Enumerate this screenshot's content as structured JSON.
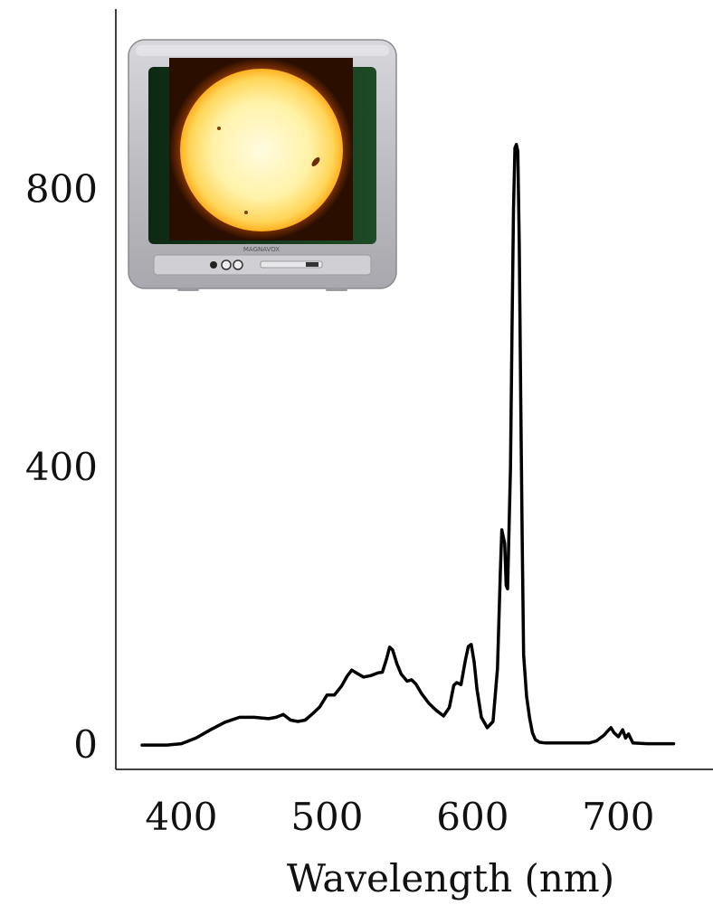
{
  "chart_data": {
    "type": "line",
    "title": "",
    "xlabel": "Wavelength (nm)",
    "ylabel": "",
    "xlim": [
      355,
      765
    ],
    "ylim": [
      -35,
      1060
    ],
    "grid": false,
    "legend": "none",
    "x_ticks": [
      {
        "value": 400,
        "label": "400"
      },
      {
        "value": 500,
        "label": "500"
      },
      {
        "value": 600,
        "label": "600"
      },
      {
        "value": 700,
        "label": "700"
      }
    ],
    "y_ticks": [
      {
        "value": 0,
        "label": "0"
      },
      {
        "value": 400,
        "label": "400"
      },
      {
        "value": 800,
        "label": "800"
      }
    ],
    "series": [
      {
        "color": "#000000",
        "x": [
          373,
          380,
          390,
          400,
          410,
          420,
          430,
          440,
          450,
          460,
          465,
          470,
          475,
          480,
          485,
          490,
          495,
          500,
          505,
          510,
          514,
          517,
          520,
          525,
          530,
          535,
          538,
          541,
          543,
          545,
          548,
          551,
          555,
          558,
          561,
          565,
          570,
          575,
          580,
          584,
          587,
          589,
          592,
          595,
          597,
          599,
          601,
          603,
          606,
          610,
          614,
          617,
          619,
          620,
          622,
          623,
          624,
          626,
          627,
          628,
          629,
          630,
          631,
          632,
          633,
          634,
          635,
          637,
          639,
          641,
          643,
          646,
          650,
          660,
          670,
          680,
          685,
          690,
          693,
          695,
          697,
          700,
          703,
          705,
          707,
          710,
          720,
          730,
          738
        ],
        "y": [
          0,
          0,
          0,
          2,
          10,
          22,
          33,
          40,
          40,
          38,
          40,
          44,
          36,
          34,
          36,
          45,
          55,
          72,
          72,
          85,
          100,
          108,
          104,
          98,
          100,
          104,
          105,
          125,
          141,
          137,
          117,
          102,
          92,
          94,
          88,
          74,
          60,
          50,
          42,
          54,
          86,
          90,
          87,
          122,
          142,
          145,
          120,
          80,
          40,
          25,
          34,
          110,
          250,
          310,
          290,
          230,
          225,
          400,
          600,
          770,
          860,
          865,
          855,
          720,
          500,
          300,
          130,
          70,
          40,
          18,
          8,
          4,
          3,
          3,
          3,
          3,
          6,
          14,
          21,
          25,
          18,
          12,
          22,
          10,
          16,
          3,
          2,
          2,
          2
        ]
      }
    ]
  },
  "inset": {
    "brand_text": "MAGNAVOX"
  }
}
